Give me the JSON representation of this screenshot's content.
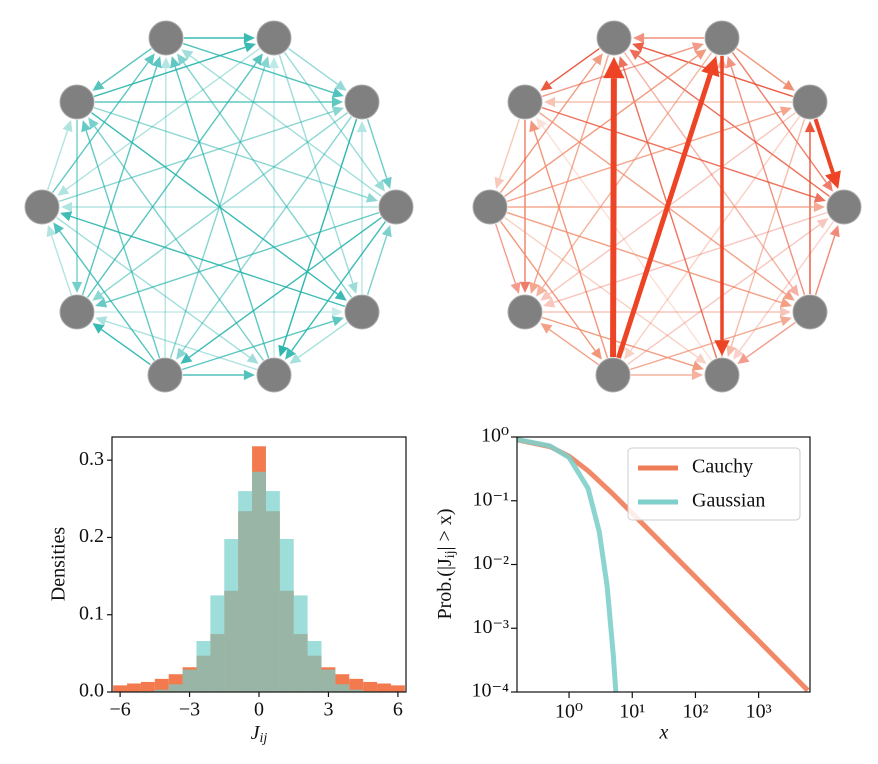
{
  "chart_data": [
    {
      "type": "histogram",
      "bins": [
        -6.3,
        -5.7,
        -5.1,
        -4.5,
        -3.9,
        -3.3,
        -2.7,
        -2.1,
        -1.5,
        -0.9,
        -0.3,
        0.3,
        0.9,
        1.5,
        2.1,
        2.7,
        3.3,
        3.9,
        4.5,
        5.1,
        5.7,
        6.3
      ],
      "series": [
        {
          "color": "#f0632f",
          "values": [
            0.0086,
            0.011,
            0.013,
            0.017,
            0.023,
            0.032,
            0.047,
            0.075,
            0.131,
            0.234,
            0.318,
            0.234,
            0.131,
            0.075,
            0.047,
            0.032,
            0.023,
            0.017,
            0.013,
            0.011,
            0.0086
          ]
        },
        {
          "color": "#74cfcb",
          "values": [
            0,
            0,
            0.001,
            0.003,
            0.01,
            0.029,
            0.066,
            0.125,
            0.198,
            0.26,
            0.285,
            0.26,
            0.198,
            0.125,
            0.066,
            0.029,
            0.01,
            0.003,
            0.001,
            0,
            0
          ]
        }
      ],
      "xlabel": {
        "main": "J",
        "sub": "ij"
      },
      "ylabel": "Densities",
      "xlim": [
        -6.35,
        6.35
      ],
      "ylim": [
        0,
        0.33
      ],
      "xticks": [
        {
          "value": -6,
          "label": "−6"
        },
        {
          "value": -3,
          "label": "−3"
        },
        0,
        3,
        6
      ],
      "yticks": [
        {
          "value": 0,
          "label": "0.0"
        },
        0.1,
        0.2,
        0.3
      ]
    },
    {
      "type": "line",
      "log_x": true,
      "log_y": true,
      "series": [
        {
          "name": "Cauchy",
          "color": "#ef7c58",
          "x": [
            0.15,
            0.5,
            1,
            2,
            5,
            10,
            50,
            100,
            500,
            1000,
            6000
          ],
          "values": [
            0.905,
            0.705,
            0.5,
            0.295,
            0.126,
            0.0635,
            0.0127,
            0.00637,
            0.00127,
            0.000637,
            0.000106
          ]
        },
        {
          "name": "Gaussian",
          "color": "#7fcfca",
          "x": [
            0.15,
            0.5,
            1,
            2,
            3,
            4,
            5,
            5.5
          ],
          "values": [
            0.915,
            0.723,
            0.478,
            0.156,
            0.033,
            0.0046,
            0.00039,
            0.0001
          ]
        }
      ],
      "xlabel": "x",
      "ylabel": {
        "pre": "Prob.(|J",
        "sub": "ij",
        "post": "| > x)"
      },
      "xlim": [
        0.15,
        6500
      ],
      "ylim": [
        0.0001,
        1
      ],
      "xticks": [
        {
          "value": 1,
          "label": "10⁰"
        },
        {
          "value": 10,
          "label": "10¹"
        },
        {
          "value": 100,
          "label": "10²"
        },
        {
          "value": 1000,
          "label": "10³"
        }
      ],
      "yticks": [
        {
          "value": 0.0001,
          "label": "10⁻⁴"
        },
        {
          "value": 0.001,
          "label": "10⁻³"
        },
        {
          "value": 0.01,
          "label": "10⁻²"
        },
        {
          "value": 0.1,
          "label": "10⁻¹"
        },
        {
          "value": 1,
          "label": "10⁰"
        }
      ],
      "legend": "upper right"
    }
  ]
}
